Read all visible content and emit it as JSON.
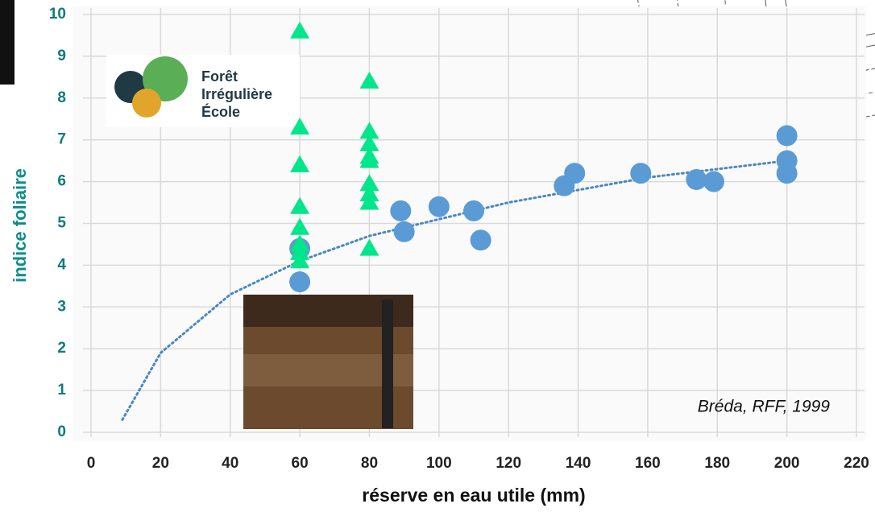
{
  "chart_data": {
    "type": "scatter",
    "x_label": "réserve en eau utile (mm)",
    "y_label": "indice foliaire",
    "xlim": [
      0,
      220
    ],
    "ylim": [
      0,
      10
    ],
    "xticks": [
      0,
      20,
      40,
      60,
      80,
      100,
      120,
      140,
      160,
      180,
      200,
      220
    ],
    "yticks": [
      0,
      1,
      2,
      3,
      4,
      5,
      6,
      7,
      8,
      9,
      10
    ],
    "grid": true,
    "series": [
      {
        "color": "#5b9bd5",
        "marker": "circle",
        "x": [
          60,
          60,
          89,
          90,
          100,
          110,
          112,
          136,
          139,
          158,
          174,
          179,
          200,
          200,
          200
        ],
        "values": [
          4.4,
          3.6,
          5.3,
          4.8,
          5.4,
          5.3,
          4.6,
          5.9,
          6.2,
          6.2,
          6.05,
          6.0,
          7.1,
          6.5,
          6.2
        ]
      },
      {
        "color": "#00e68a",
        "marker": "triangle",
        "x": [
          60,
          60,
          60,
          60,
          60,
          60,
          60,
          60,
          80,
          80,
          80,
          80,
          80,
          80,
          80,
          80,
          80
        ],
        "values": [
          9.6,
          7.3,
          6.4,
          5.4,
          4.9,
          4.5,
          4.3,
          4.1,
          8.4,
          7.2,
          6.9,
          6.6,
          6.5,
          5.95,
          5.7,
          5.5,
          4.4
        ]
      },
      {
        "color": "#4a88c0",
        "marker": "dotted-line",
        "x": [
          9,
          20,
          40,
          60,
          80,
          100,
          120,
          140,
          160,
          180,
          200
        ],
        "values": [
          0.3,
          1.9,
          3.3,
          4.1,
          4.7,
          5.1,
          5.5,
          5.8,
          6.1,
          6.3,
          6.5
        ]
      }
    ],
    "annotation": "Bréda, RFF, 1999",
    "logo": [
      "Forêt",
      "Irrégulière",
      "École"
    ]
  }
}
